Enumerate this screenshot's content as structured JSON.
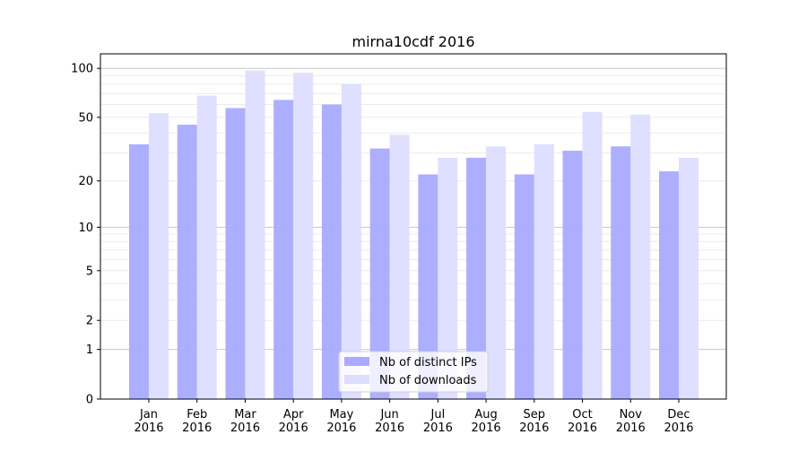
{
  "chart_data": {
    "type": "bar",
    "title": "mirna10cdf 2016",
    "xlabel": "",
    "ylabel": "",
    "yscale": "log(1+x)",
    "ylim": [
      0,
      120
    ],
    "yticks": [
      0,
      1,
      2,
      5,
      10,
      20,
      50,
      100
    ],
    "grid": true,
    "legend_position": "bottom-center",
    "categories": [
      "Jan\n2016",
      "Feb\n2016",
      "Mar\n2016",
      "Apr\n2016",
      "May\n2016",
      "Jun\n2016",
      "Jul\n2016",
      "Aug\n2016",
      "Sep\n2016",
      "Oct\n2016",
      "Nov\n2016",
      "Dec\n2016"
    ],
    "series": [
      {
        "name": "Nb of distinct IPs",
        "color": "#aaaaff",
        "values": [
          34,
          45,
          57,
          64,
          60,
          32,
          22,
          28,
          22,
          31,
          33,
          23
        ]
      },
      {
        "name": "Nb of downloads",
        "color": "#ddddff",
        "values": [
          53,
          68,
          97,
          94,
          80,
          39,
          28,
          33,
          34,
          54,
          52,
          28
        ]
      }
    ]
  }
}
